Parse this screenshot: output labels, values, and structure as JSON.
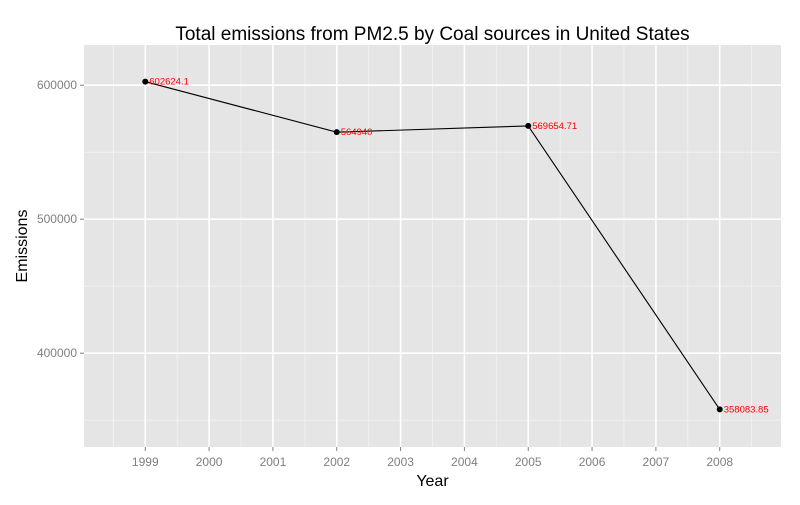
{
  "chart_data": {
    "type": "line",
    "title": "Total emissions from PM2.5 by Coal sources in United States",
    "xlabel": "Year",
    "ylabel": "Emissions",
    "x": [
      1999,
      2002,
      2005,
      2008
    ],
    "values": [
      602624.1,
      564940,
      569654.71,
      358083.85
    ],
    "data_labels": [
      "602624.1",
      "564940",
      "569654.71",
      "358083.85"
    ],
    "x_ticks": [
      1999,
      2000,
      2001,
      2002,
      2003,
      2004,
      2005,
      2006,
      2007,
      2008
    ],
    "x_tick_labels": [
      "1999",
      "2000",
      "2001",
      "2002",
      "2003",
      "2004",
      "2005",
      "2006",
      "2007",
      "2008"
    ],
    "y_ticks": [
      400000,
      500000,
      600000
    ],
    "y_tick_labels": [
      "400000",
      "500000",
      "600000"
    ],
    "xlim": [
      1998.04,
      2008.96
    ],
    "ylim": [
      330000,
      630000
    ],
    "grid": true,
    "legend": "none",
    "colors": {
      "panel_background": "#e5e5e5",
      "grid_major": "#ffffff",
      "grid_minor": "#f2f2f2",
      "line": "#000000",
      "point": "#000000",
      "data_label": "#ff0000",
      "tick_label": "#7f7f7f",
      "title": "#000000"
    }
  }
}
